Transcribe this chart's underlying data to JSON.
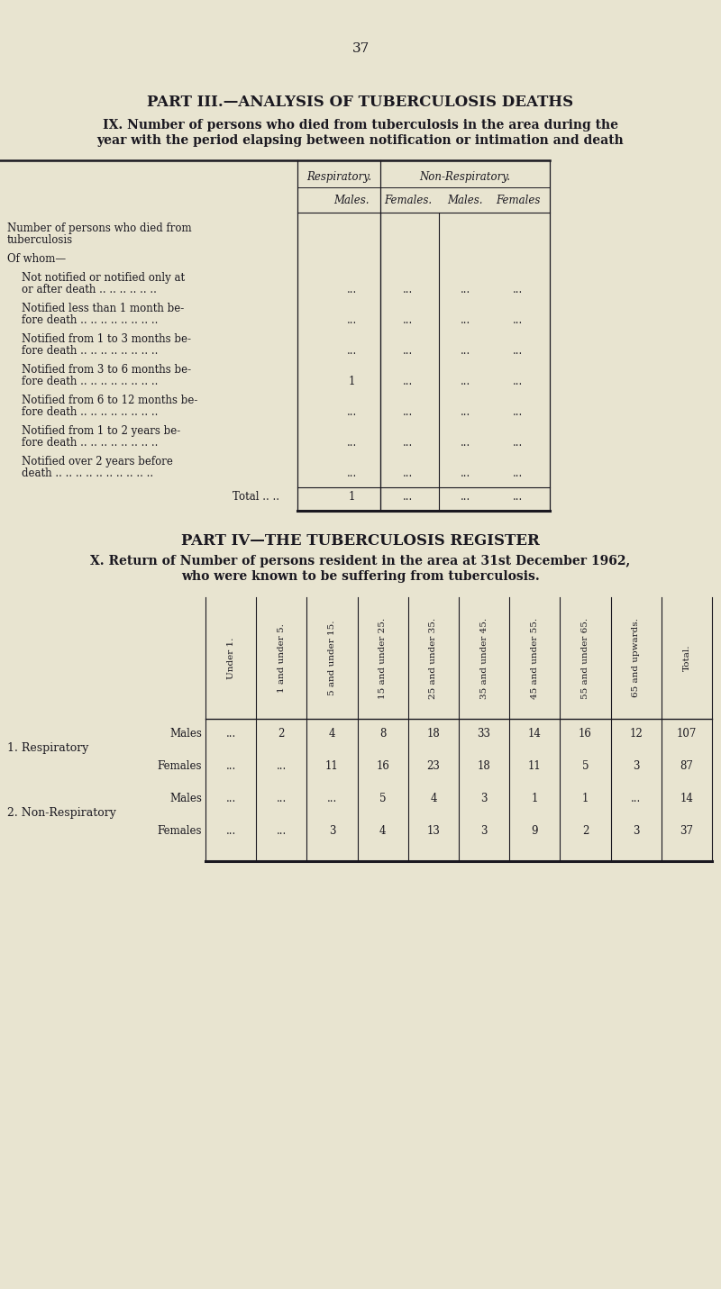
{
  "bg_color": "#e8e4d0",
  "page_number": "37",
  "part3_title": "PART III.—ANALYSIS OF TUBERCULOSIS DEATHS",
  "part3_subtitle_line1": "IX. Number of persons who died from tuberculosis in the area during the",
  "part3_subtitle_line2": "year with the period elapsing between notification or intimation and death",
  "table1_col_headers_top": [
    "Respiratory.",
    "Non-Respiratory."
  ],
  "table1_col_headers_bot": [
    "Males.",
    "Females.",
    "Males.",
    "Females"
  ],
  "table1_rows": [
    {
      "lines": [
        "Number of persons who died from",
        "tuberculosis"
      ],
      "values": [
        "",
        "",
        "",
        ""
      ],
      "indent": 0
    },
    {
      "lines": [
        "Of whom—"
      ],
      "values": [
        "",
        "",
        "",
        ""
      ],
      "indent": 0
    },
    {
      "lines": [
        "Not notified or notified only at",
        "or after death .. .. .. .. .. .."
      ],
      "values": [
        "...",
        "...",
        "...",
        "..."
      ],
      "indent": 1
    },
    {
      "lines": [
        "Notified less than 1 month be-",
        "fore death .. .. .. .. .. .. .. .."
      ],
      "values": [
        "...",
        "...",
        "...",
        "..."
      ],
      "indent": 1
    },
    {
      "lines": [
        "Notified from 1 to 3 months be-",
        "fore death .. .. .. .. .. .. .. .."
      ],
      "values": [
        "...",
        "...",
        "...",
        "..."
      ],
      "indent": 1
    },
    {
      "lines": [
        "Notified from 3 to 6 months be-",
        "fore death .. .. .. .. .. .. .. .."
      ],
      "values": [
        "1",
        "...",
        "...",
        "..."
      ],
      "indent": 1
    },
    {
      "lines": [
        "Notified from 6 to 12 months be-",
        "fore death .. .. .. .. .. .. .. .."
      ],
      "values": [
        "...",
        "...",
        "...",
        "..."
      ],
      "indent": 1
    },
    {
      "lines": [
        "Notified from 1 to 2 years be-",
        "fore death .. .. .. .. .. .. .. .."
      ],
      "values": [
        "...",
        "...",
        "...",
        "..."
      ],
      "indent": 1
    },
    {
      "lines": [
        "Notified over 2 years before",
        "death .. .. .. .. .. .. .. .. .. .."
      ],
      "values": [
        "...",
        "...",
        "...",
        "..."
      ],
      "indent": 1
    }
  ],
  "table1_total_values": [
    "1",
    "...",
    "...",
    "..."
  ],
  "part4_title": "PART IV—THE TUBERCULOSIS REGISTER",
  "part4_subtitle_line1": "X. Return of Number of persons resident in the area at 31st December 1962,",
  "part4_subtitle_line2": "who were known to be suffering from tuberculosis.",
  "table2_col_headers": [
    "Under 1.",
    "1 and under 5.",
    "5 and under 15.",
    "15 and under 25.",
    "25 and under 35.",
    "35 and under 45.",
    "45 and under 55.",
    "55 and under 65.",
    "65 and upwards.",
    "Total."
  ],
  "table2_rows": [
    {
      "section": "1. Respiratory",
      "gender": "Males",
      "values": [
        "...",
        "2",
        "4",
        "8",
        "18",
        "33",
        "14",
        "16",
        "12",
        "107"
      ]
    },
    {
      "section": "1. Respiratory",
      "gender": "Females",
      "values": [
        "...",
        "...",
        "11",
        "16",
        "23",
        "18",
        "11",
        "5",
        "3",
        "87"
      ]
    },
    {
      "section": "2. Non-Respiratory",
      "gender": "Males",
      "values": [
        "...",
        "...",
        "...",
        "5",
        "4",
        "3",
        "1",
        "1",
        "...",
        "14"
      ]
    },
    {
      "section": "2. Non-Respiratory",
      "gender": "Females",
      "values": [
        "...",
        "...",
        "3",
        "4",
        "13",
        "3",
        "9",
        "2",
        "3",
        "37"
      ]
    }
  ],
  "text_color": "#1a1820",
  "line_color": "#1a1820"
}
